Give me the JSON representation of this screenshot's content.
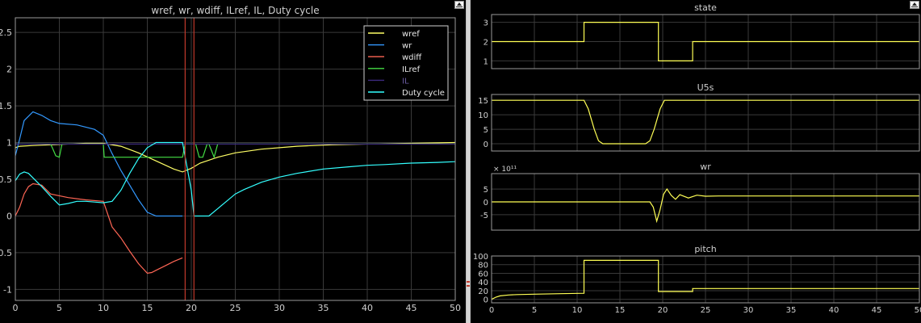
{
  "colors": {
    "background": "#000000",
    "axes": "#9a9a9a",
    "grid": "#3a3a3a",
    "text": "#d0d0d0",
    "cursor": "#c0392b",
    "signal": "#ffff55"
  },
  "icons": {
    "undock_left": "undock-icon",
    "undock_right": "undock-icon"
  },
  "chart_data": [
    {
      "type": "line",
      "title": "wref, wr, wdiff, ILref, IL, Duty cycle",
      "xlim": [
        0,
        50
      ],
      "ylim": [
        -1.15,
        2.7
      ],
      "x_ticks": [
        "0",
        "5",
        "10",
        "15",
        "20",
        "25",
        "30",
        "35",
        "40",
        "45",
        "50"
      ],
      "y_ticks": [
        "-1",
        "-0.5",
        "0",
        "0.5",
        "1",
        "1.5",
        "2",
        "2.5"
      ],
      "y_tick_values": [
        -1,
        -0.5,
        0,
        0.5,
        1,
        1.5,
        2,
        2.5
      ],
      "grid": true,
      "legend_position": "top-right",
      "cursors_x": [
        19.3,
        20.3
      ],
      "series": [
        {
          "name": "wref",
          "color": "#ffff66",
          "x": [
            0,
            0.5,
            2,
            4,
            6,
            8,
            10,
            12,
            14,
            16,
            18,
            19,
            20,
            21,
            23,
            25,
            28,
            32,
            36,
            40,
            45,
            50
          ],
          "y": [
            0.93,
            0.95,
            0.96,
            0.97,
            0.98,
            0.99,
            0.99,
            0.95,
            0.86,
            0.75,
            0.64,
            0.6,
            0.65,
            0.72,
            0.8,
            0.86,
            0.91,
            0.95,
            0.97,
            0.98,
            0.99,
            1.0
          ]
        },
        {
          "name": "wr",
          "color": "#3399ff",
          "x": [
            0,
            0.5,
            1,
            2,
            3,
            4,
            5,
            7,
            9,
            10,
            11,
            12,
            13,
            14,
            15,
            16,
            17,
            18,
            19
          ],
          "y": [
            0.82,
            1.05,
            1.3,
            1.42,
            1.37,
            1.3,
            1.26,
            1.24,
            1.18,
            1.1,
            0.85,
            0.62,
            0.42,
            0.22,
            0.05,
            0.0,
            0.0,
            0.0,
            0.0
          ]
        },
        {
          "name": "wdiff",
          "color": "#ff6655",
          "x": [
            0,
            0.5,
            1,
            1.5,
            2,
            3,
            4,
            6,
            8,
            10,
            11,
            12,
            13,
            14,
            15,
            15.5,
            16,
            17,
            18,
            19
          ],
          "y": [
            0.0,
            0.12,
            0.3,
            0.4,
            0.44,
            0.42,
            0.3,
            0.25,
            0.22,
            0.2,
            -0.15,
            -0.3,
            -0.48,
            -0.65,
            -0.78,
            -0.77,
            -0.74,
            -0.68,
            -0.62,
            -0.57
          ]
        },
        {
          "name": "ILref",
          "color": "#44dd44",
          "x": [
            0,
            4,
            4.2,
            4.6,
            5,
            5.3,
            6,
            10,
            10.1,
            15,
            19,
            19.3,
            19.7,
            20.5,
            20.9,
            21.3,
            21.8,
            22,
            22.6,
            23,
            50
          ],
          "y": [
            0.98,
            0.98,
            0.93,
            0.82,
            0.8,
            0.98,
            0.98,
            0.98,
            0.8,
            0.8,
            0.8,
            0.98,
            0.98,
            0.98,
            0.8,
            0.8,
            0.98,
            0.98,
            0.8,
            0.98,
            0.98
          ]
        },
        {
          "name": "IL",
          "color": "#3d2a80",
          "x": [
            0,
            50
          ],
          "y": [
            0.98,
            0.98
          ]
        },
        {
          "name": "Duty cycle",
          "color": "#33ffff",
          "x": [
            0,
            0.5,
            1,
            1.5,
            2,
            3,
            4,
            5,
            6,
            7,
            8,
            9,
            10,
            11,
            12,
            13,
            14,
            15,
            16,
            18,
            19,
            20,
            20.3,
            22,
            23,
            24,
            25,
            26,
            28,
            30,
            32,
            35,
            38,
            40,
            42,
            45,
            48,
            50
          ],
          "y": [
            0.48,
            0.57,
            0.6,
            0.58,
            0.52,
            0.4,
            0.27,
            0.15,
            0.17,
            0.2,
            0.2,
            0.19,
            0.18,
            0.2,
            0.35,
            0.58,
            0.78,
            0.93,
            1.0,
            1.0,
            1.0,
            0.35,
            0.0,
            0.0,
            0.1,
            0.2,
            0.3,
            0.36,
            0.46,
            0.53,
            0.58,
            0.64,
            0.67,
            0.69,
            0.7,
            0.72,
            0.73,
            0.74
          ]
        }
      ]
    },
    {
      "type": "line",
      "title": "state",
      "xlim": [
        0,
        50
      ],
      "ylim": [
        0.6,
        3.4
      ],
      "y_ticks": [
        "1",
        "2",
        "3"
      ],
      "y_tick_values": [
        1,
        2,
        3
      ],
      "grid": true,
      "series": [
        {
          "color": "#ffff55",
          "x": [
            0,
            10.8,
            10.8,
            19.5,
            19.5,
            23.5,
            23.5,
            50
          ],
          "y": [
            2,
            2,
            3,
            3,
            1,
            1,
            2,
            2
          ]
        }
      ]
    },
    {
      "type": "line",
      "title": "U5s",
      "xlim": [
        0,
        50
      ],
      "ylim": [
        -2.5,
        17
      ],
      "y_ticks": [
        "0",
        "5",
        "10",
        "15"
      ],
      "y_tick_values": [
        0,
        5,
        10,
        15
      ],
      "grid": true,
      "series": [
        {
          "color": "#ffff55",
          "x": [
            0,
            10.8,
            11.3,
            12,
            12.5,
            13,
            18,
            18.5,
            19,
            19.7,
            20.2,
            50
          ],
          "y": [
            15,
            15,
            12,
            5,
            1,
            0,
            0,
            1,
            5,
            12,
            15,
            15
          ]
        }
      ]
    },
    {
      "type": "line",
      "title": "wr",
      "exponent_label": "× 10¹¹",
      "xlim": [
        0,
        50
      ],
      "ylim": [
        -11,
        11
      ],
      "y_ticks": [
        "-5",
        "0",
        "5"
      ],
      "y_tick_values": [
        -5,
        0,
        5
      ],
      "grid": true,
      "series": [
        {
          "color": "#ffff55",
          "x": [
            0,
            18.5,
            18.9,
            19.3,
            19.7,
            20.1,
            20.5,
            21,
            21.5,
            22,
            23,
            24,
            25,
            26.5,
            50
          ],
          "y": [
            0,
            0,
            -2,
            -7.5,
            -3,
            3,
            5,
            2.5,
            1,
            2.8,
            1.5,
            2.6,
            2.2,
            2.3,
            2.3
          ]
        }
      ]
    },
    {
      "type": "line",
      "title": "pitch",
      "xlim": [
        0,
        50
      ],
      "ylim": [
        -8,
        100
      ],
      "x_ticks": [
        "0",
        "5",
        "10",
        "15",
        "20",
        "25",
        "30",
        "35",
        "40",
        "45",
        "50"
      ],
      "y_ticks": [
        "0",
        "20",
        "40",
        "60",
        "80",
        "100"
      ],
      "y_tick_values": [
        0,
        20,
        40,
        60,
        80,
        100
      ],
      "grid": true,
      "series": [
        {
          "color": "#ffff55",
          "x": [
            0,
            0.5,
            1,
            2,
            3,
            5,
            8,
            10.8,
            10.8,
            19.5,
            19.5,
            23.5,
            23.5,
            50
          ],
          "y": [
            0,
            5,
            8,
            10,
            11,
            12,
            13,
            14,
            90,
            90,
            18,
            18,
            25,
            25
          ]
        }
      ]
    }
  ]
}
